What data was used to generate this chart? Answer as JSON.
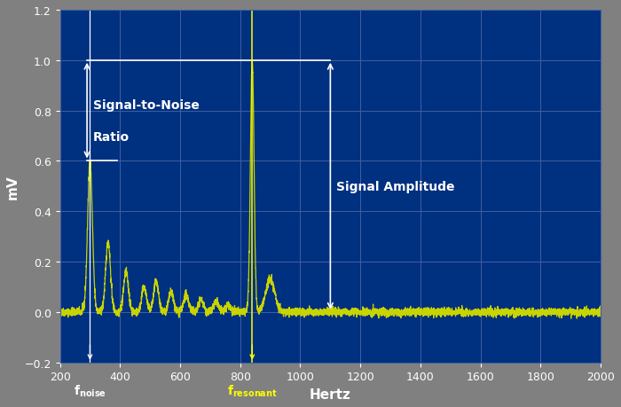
{
  "background_color": "#808080",
  "plot_bg_color": "#003080",
  "grid_color": "#4060a0",
  "line_color": "#c8d400",
  "xlabel": "Hertz",
  "ylabel": "mV",
  "xlim": [
    200,
    2000
  ],
  "ylim": [
    -0.2,
    1.2
  ],
  "xticks": [
    200,
    400,
    600,
    800,
    1000,
    1200,
    1400,
    1600,
    1800,
    2000
  ],
  "yticks": [
    -0.2,
    0.0,
    0.2,
    0.4,
    0.6,
    0.8,
    1.0,
    1.2
  ],
  "noise_peak_freq": 300,
  "noise_peak_amp": 0.6,
  "resonant_freq": 840,
  "resonant_amp": 1.0,
  "snr_label_line1": "Signal-to-Noise",
  "snr_label_line2": "Ratio",
  "amplitude_label": "Signal Amplitude",
  "fnoise_color": "#ffffff",
  "fresonant_color": "#ffff00",
  "axis_label_color": "#ffffff",
  "tick_label_color": "#ffffff",
  "noise_peaks": [
    300,
    360,
    420,
    480,
    520,
    570,
    620,
    670,
    720,
    760
  ],
  "noise_amps": [
    0.6,
    0.28,
    0.16,
    0.1,
    0.12,
    0.08,
    0.07,
    0.05,
    0.04,
    0.03
  ],
  "resonant_peak_freq": 840,
  "resonant_peak_amp": 1.0,
  "shoulder_freq": 900,
  "shoulder_amp": 0.13
}
